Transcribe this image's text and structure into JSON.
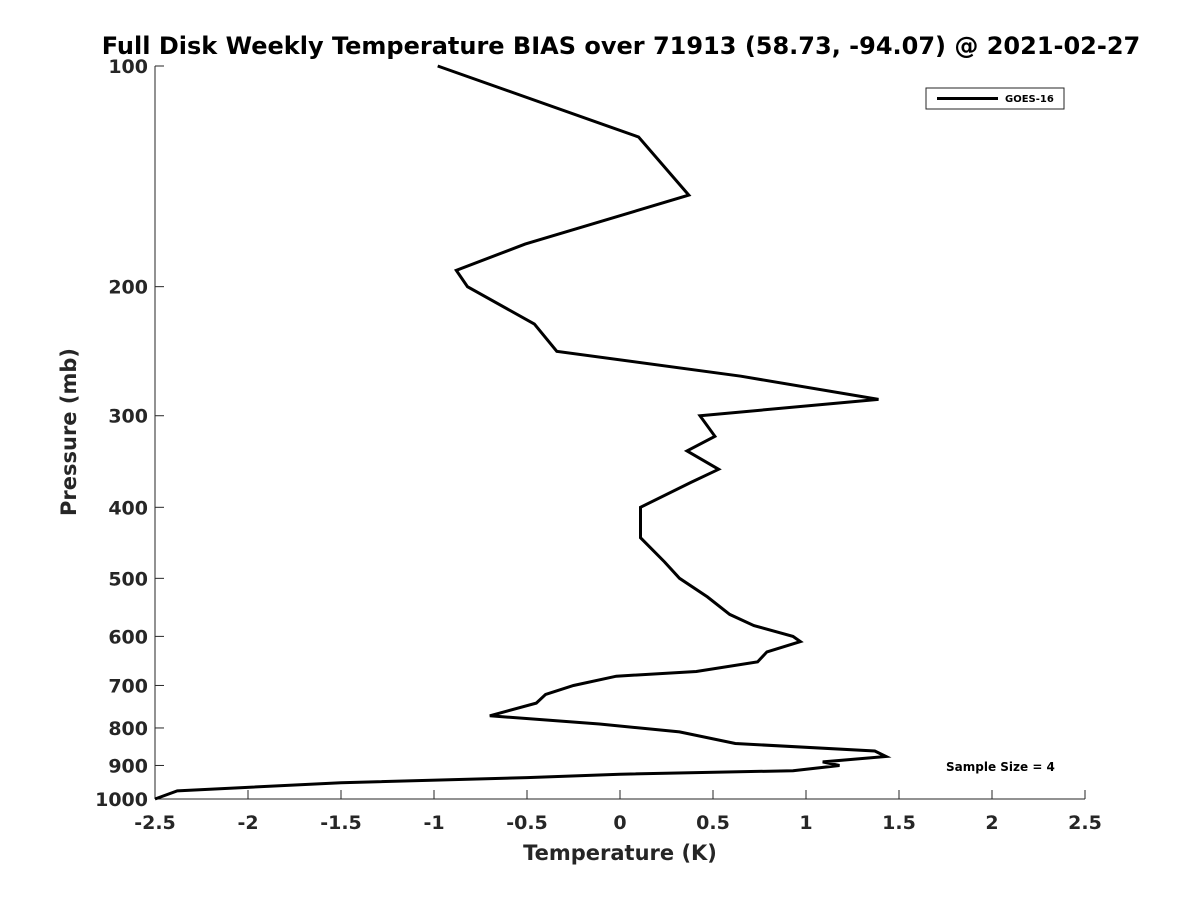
{
  "chart_data": {
    "type": "line",
    "title": "Full Disk Weekly Temperature BIAS over 71913 (58.73, -94.07) @ 2021-02-27",
    "xlabel": "Temperature (K)",
    "ylabel": "Pressure (mb)",
    "xlim": [
      -2.5,
      2.5
    ],
    "ylim": [
      100,
      1000
    ],
    "y_scale": "log",
    "y_reversed": true,
    "grid": false,
    "legend_position": "top-right",
    "x_ticks": [
      "-2.5",
      "-2",
      "-1.5",
      "-1",
      "-0.5",
      "0",
      "0.5",
      "1",
      "1.5",
      "2",
      "2.5"
    ],
    "y_ticks": [
      "100",
      "200",
      "300",
      "400",
      "500",
      "600",
      "700",
      "800",
      "900",
      "1000"
    ],
    "series": [
      {
        "name": "GOES-16",
        "color": "#000000",
        "points": [
          {
            "x": -0.98,
            "y": 100
          },
          {
            "x": 0.1,
            "y": 125
          },
          {
            "x": 0.37,
            "y": 150
          },
          {
            "x": -0.51,
            "y": 175
          },
          {
            "x": -0.88,
            "y": 190
          },
          {
            "x": -0.82,
            "y": 200
          },
          {
            "x": -0.46,
            "y": 225
          },
          {
            "x": -0.34,
            "y": 245
          },
          {
            "x": 0.65,
            "y": 265
          },
          {
            "x": 1.39,
            "y": 285
          },
          {
            "x": 0.43,
            "y": 300
          },
          {
            "x": 0.51,
            "y": 320
          },
          {
            "x": 0.36,
            "y": 335
          },
          {
            "x": 0.53,
            "y": 355
          },
          {
            "x": 0.38,
            "y": 370
          },
          {
            "x": 0.11,
            "y": 400
          },
          {
            "x": 0.11,
            "y": 440
          },
          {
            "x": 0.24,
            "y": 475
          },
          {
            "x": 0.32,
            "y": 500
          },
          {
            "x": 0.47,
            "y": 530
          },
          {
            "x": 0.59,
            "y": 560
          },
          {
            "x": 0.72,
            "y": 580
          },
          {
            "x": 0.93,
            "y": 600
          },
          {
            "x": 0.97,
            "y": 610
          },
          {
            "x": 0.79,
            "y": 630
          },
          {
            "x": 0.74,
            "y": 650
          },
          {
            "x": 0.41,
            "y": 670
          },
          {
            "x": -0.02,
            "y": 680
          },
          {
            "x": -0.25,
            "y": 700
          },
          {
            "x": -0.4,
            "y": 720
          },
          {
            "x": -0.45,
            "y": 740
          },
          {
            "x": -0.7,
            "y": 770
          },
          {
            "x": -0.11,
            "y": 790
          },
          {
            "x": 0.32,
            "y": 810
          },
          {
            "x": 0.62,
            "y": 840
          },
          {
            "x": 1.37,
            "y": 860
          },
          {
            "x": 1.43,
            "y": 875
          },
          {
            "x": 1.09,
            "y": 890
          },
          {
            "x": 1.18,
            "y": 900
          },
          {
            "x": 0.93,
            "y": 915
          },
          {
            "x": 0.0,
            "y": 925
          },
          {
            "x": -0.5,
            "y": 935
          },
          {
            "x": -1.5,
            "y": 950
          },
          {
            "x": -2.38,
            "y": 975
          },
          {
            "x": -2.5,
            "y": 1000
          }
        ]
      }
    ],
    "annotation": "Sample Size = 4"
  }
}
